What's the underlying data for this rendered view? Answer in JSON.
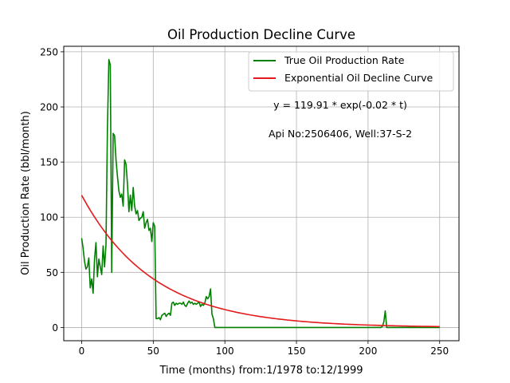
{
  "chart_data": {
    "type": "line",
    "title": "Oil Production Decline Curve",
    "xlabel": "Time (months) from:1/1978 to:12/1999",
    "ylabel": "Oil Production Rate (bbl/month)",
    "xlim": [
      -12.5,
      263.5
    ],
    "ylim": [
      -12,
      255
    ],
    "xticks": [
      0,
      50,
      100,
      150,
      200,
      250
    ],
    "yticks": [
      0,
      50,
      100,
      150,
      200,
      250
    ],
    "grid": true,
    "legend_position": "top-right",
    "annotations": [
      "y = 119.91 * exp(-0.02 * t)",
      "Api No:2506406, Well:37-S-2"
    ],
    "series": [
      {
        "name": "True Oil Production Rate",
        "color": "#008000",
        "x": [
          0,
          1,
          2,
          3,
          4,
          5,
          6,
          7,
          8,
          9,
          10,
          11,
          12,
          13,
          14,
          15,
          16,
          17,
          18,
          19,
          20,
          21,
          22,
          23,
          24,
          25,
          26,
          27,
          28,
          29,
          30,
          31,
          32,
          33,
          34,
          35,
          36,
          37,
          38,
          39,
          40,
          41,
          42,
          43,
          44,
          45,
          46,
          47,
          48,
          49,
          50,
          51,
          52,
          53,
          54,
          55,
          56,
          57,
          58,
          59,
          60,
          61,
          62,
          63,
          64,
          65,
          66,
          67,
          68,
          69,
          70,
          71,
          72,
          73,
          74,
          75,
          76,
          77,
          78,
          79,
          80,
          81,
          82,
          83,
          84,
          85,
          86,
          87,
          88,
          89,
          90,
          91,
          92,
          93,
          100,
          150,
          200,
          209,
          210,
          211,
          212,
          213,
          250
        ],
        "y": [
          81,
          72,
          60,
          53,
          55,
          63,
          36,
          44,
          31,
          62,
          77,
          46,
          62,
          55,
          48,
          74,
          55,
          75,
          180,
          243,
          238,
          50,
          176,
          174,
          152,
          137,
          124,
          118,
          121,
          110,
          152,
          148,
          130,
          105,
          120,
          106,
          127,
          110,
          103,
          106,
          97,
          99,
          100,
          105,
          90,
          95,
          98,
          88,
          90,
          78,
          95,
          92,
          8,
          8,
          9,
          7,
          11,
          12,
          13,
          10,
          12,
          13,
          11,
          22,
          23,
          20,
          22,
          21,
          22,
          22,
          21,
          23,
          20,
          19,
          22,
          24,
          22,
          23,
          21,
          22,
          21,
          22,
          23,
          19,
          21,
          20,
          22,
          28,
          26,
          28,
          35,
          12,
          8,
          0,
          0,
          0,
          0,
          0,
          1,
          5,
          15,
          0,
          0
        ]
      },
      {
        "name": "Exponential Oil Decline Curve",
        "color": "#e41a1c",
        "model": {
          "a": 119.91,
          "b": -0.02
        }
      }
    ]
  }
}
